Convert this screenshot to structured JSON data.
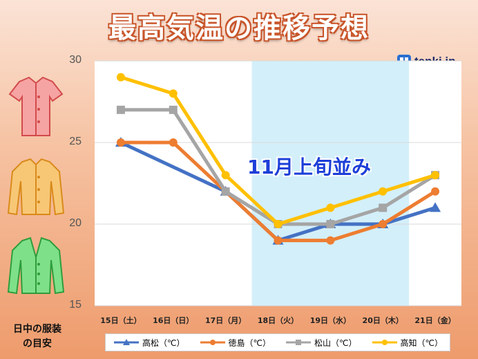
{
  "title": "最高気温の推移予想",
  "logo": {
    "text": "tenki.jp",
    "icon": "tenki-logo-icon"
  },
  "annotation": "11月上旬並み",
  "clothes_caption": [
    "日中の服装",
    "の目安"
  ],
  "clothes": [
    {
      "icon": "short-sleeve-shirt-icon",
      "color": "#f08080"
    },
    {
      "icon": "long-sleeve-shirt-icon",
      "color": "#f4b042"
    },
    {
      "icon": "cardigan-icon",
      "color": "#5fd36b"
    }
  ],
  "colors": {
    "shade": "#d3effa"
  },
  "chart_data": {
    "type": "line",
    "title": "最高気温の推移予想",
    "categories": [
      "15日（土）",
      "16日（日）",
      "17日（月）",
      "18日（火）",
      "19日（水）",
      "20日（木）",
      "21日（金）"
    ],
    "ylim": [
      15,
      30
    ],
    "yticks": [
      "15",
      "20",
      "25",
      "30"
    ],
    "highlight_range": [
      "18日（火）",
      "20日（木）"
    ],
    "legend_position": "bottom",
    "series": [
      {
        "name": "高松（℃）",
        "color": "#4472c4",
        "marker": "triangle",
        "values": [
          25,
          null,
          22,
          19,
          20,
          20,
          21
        ]
      },
      {
        "name": "徳島（℃）",
        "color": "#ed7d31",
        "marker": "circle",
        "values": [
          25,
          25,
          22,
          19,
          19,
          20,
          22
        ]
      },
      {
        "name": "松山（℃）",
        "color": "#a5a5a5",
        "marker": "square",
        "values": [
          27,
          27,
          22,
          20,
          20,
          21,
          23
        ]
      },
      {
        "name": "高知（℃）",
        "color": "#ffc000",
        "marker": "circle",
        "values": [
          29,
          28,
          23,
          20,
          21,
          22,
          23
        ]
      }
    ]
  }
}
